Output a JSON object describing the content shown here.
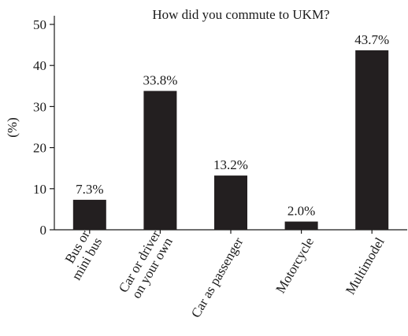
{
  "chart_data": {
    "type": "bar",
    "title": "How did you commute to UKM?",
    "ylabel": "(%)",
    "xlabel": "",
    "ylim": [
      0,
      50
    ],
    "yticks": [
      0,
      10,
      20,
      30,
      40,
      50
    ],
    "categories": [
      [
        "Bus or",
        "mini bus"
      ],
      [
        "Car or driver",
        "on your own"
      ],
      [
        "Car as passenger"
      ],
      [
        "Motorcycle"
      ],
      [
        "Multimodel"
      ]
    ],
    "values": [
      7.3,
      33.8,
      13.2,
      2.0,
      43.7
    ],
    "data_labels": [
      "7.3%",
      "33.8%",
      "13.2%",
      "2.0%",
      "43.7%"
    ],
    "bar_color": "#231f20",
    "grid": false,
    "legend": "none"
  }
}
